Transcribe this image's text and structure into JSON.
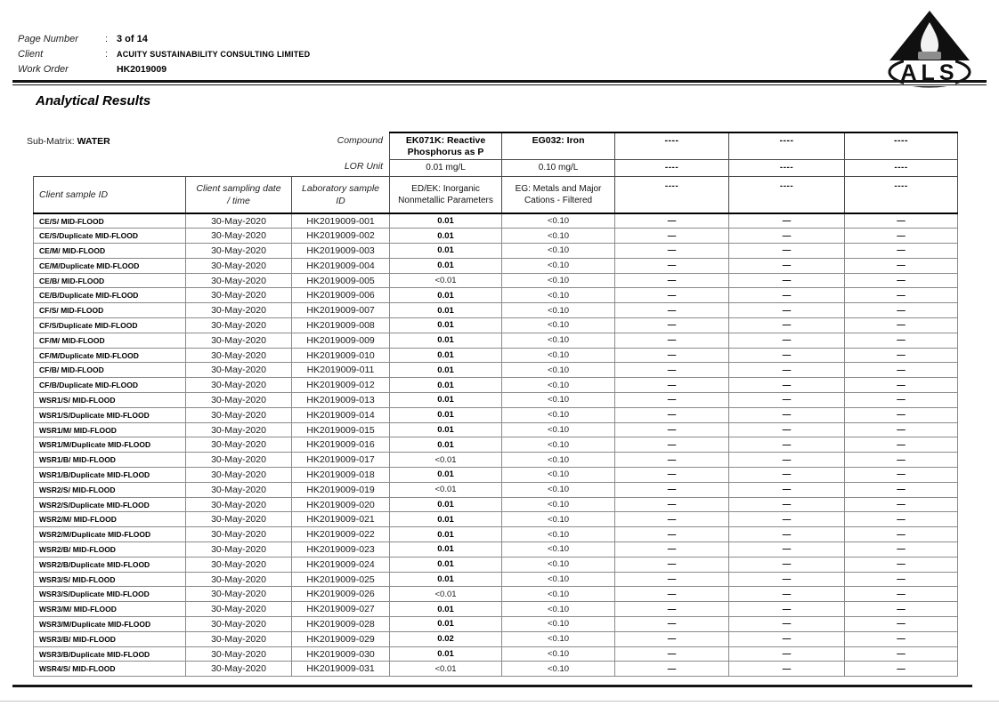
{
  "header": {
    "fields": [
      {
        "label": "Page Number",
        "sep": ":",
        "value": "3 of 14"
      },
      {
        "label": "Client",
        "sep": ":",
        "value": "ACUITY SUSTAINABILITY CONSULTING LIMITED"
      },
      {
        "label": "Work Order",
        "sep": "",
        "value": "HK2019009"
      }
    ],
    "logo_text": "ALS"
  },
  "section_title": "Analytical Results",
  "table": {
    "submatrix_label": "Sub-Matrix:",
    "submatrix_value": "WATER",
    "compound_label": "Compound",
    "lor_unit_label": "LOR Unit",
    "id_columns": [
      {
        "line1": "Client sample ID",
        "line2": ""
      },
      {
        "line1": "Client sampling date",
        "line2": "/ time"
      },
      {
        "line1": "Laboratory sample",
        "line2": "ID"
      }
    ],
    "analytes": [
      {
        "name": "EK071K: Reactive Phosphorus as P",
        "lor_unit": "0.01 mg/L",
        "method": "ED/EK: Inorganic Nonmetallic Parameters"
      },
      {
        "name": "EG032: Iron",
        "lor_unit": "0.10 mg/L",
        "method": "EG: Metals and Major Cations - Filtered"
      },
      {
        "name": "----",
        "lor_unit": "----",
        "method": "----"
      },
      {
        "name": "----",
        "lor_unit": "----",
        "method": "----"
      },
      {
        "name": "----",
        "lor_unit": "----",
        "method": "----"
      }
    ],
    "rows": [
      {
        "sample_id": "CE/S/ MID-FLOOD",
        "date": "30-May-2020",
        "lab_id": "HK2019009-001",
        "values": [
          "0.01",
          "<0.10",
          "—",
          "—",
          "—"
        ]
      },
      {
        "sample_id": "CE/S/Duplicate MID-FLOOD",
        "date": "30-May-2020",
        "lab_id": "HK2019009-002",
        "values": [
          "0.01",
          "<0.10",
          "—",
          "—",
          "—"
        ]
      },
      {
        "sample_id": "CE/M/ MID-FLOOD",
        "date": "30-May-2020",
        "lab_id": "HK2019009-003",
        "values": [
          "0.01",
          "<0.10",
          "—",
          "—",
          "—"
        ]
      },
      {
        "sample_id": "CE/M/Duplicate MID-FLOOD",
        "date": "30-May-2020",
        "lab_id": "HK2019009-004",
        "values": [
          "0.01",
          "<0.10",
          "—",
          "—",
          "—"
        ]
      },
      {
        "sample_id": "CE/B/ MID-FLOOD",
        "date": "30-May-2020",
        "lab_id": "HK2019009-005",
        "values": [
          "<0.01",
          "<0.10",
          "—",
          "—",
          "—"
        ]
      },
      {
        "sample_id": "CE/B/Duplicate MID-FLOOD",
        "date": "30-May-2020",
        "lab_id": "HK2019009-006",
        "values": [
          "0.01",
          "<0.10",
          "—",
          "—",
          "—"
        ]
      },
      {
        "sample_id": "CF/S/ MID-FLOOD",
        "date": "30-May-2020",
        "lab_id": "HK2019009-007",
        "values": [
          "0.01",
          "<0.10",
          "—",
          "—",
          "—"
        ]
      },
      {
        "sample_id": "CF/S/Duplicate MID-FLOOD",
        "date": "30-May-2020",
        "lab_id": "HK2019009-008",
        "values": [
          "0.01",
          "<0.10",
          "—",
          "—",
          "—"
        ]
      },
      {
        "sample_id": "CF/M/ MID-FLOOD",
        "date": "30-May-2020",
        "lab_id": "HK2019009-009",
        "values": [
          "0.01",
          "<0.10",
          "—",
          "—",
          "—"
        ]
      },
      {
        "sample_id": "CF/M/Duplicate MID-FLOOD",
        "date": "30-May-2020",
        "lab_id": "HK2019009-010",
        "values": [
          "0.01",
          "<0.10",
          "—",
          "—",
          "—"
        ]
      },
      {
        "sample_id": "CF/B/ MID-FLOOD",
        "date": "30-May-2020",
        "lab_id": "HK2019009-011",
        "values": [
          "0.01",
          "<0.10",
          "—",
          "—",
          "—"
        ]
      },
      {
        "sample_id": "CF/B/Duplicate MID-FLOOD",
        "date": "30-May-2020",
        "lab_id": "HK2019009-012",
        "values": [
          "0.01",
          "<0.10",
          "—",
          "—",
          "—"
        ]
      },
      {
        "sample_id": "WSR1/S/ MID-FLOOD",
        "date": "30-May-2020",
        "lab_id": "HK2019009-013",
        "values": [
          "0.01",
          "<0.10",
          "—",
          "—",
          "—"
        ]
      },
      {
        "sample_id": "WSR1/S/Duplicate MID-FLOOD",
        "date": "30-May-2020",
        "lab_id": "HK2019009-014",
        "values": [
          "0.01",
          "<0.10",
          "—",
          "—",
          "—"
        ]
      },
      {
        "sample_id": "WSR1/M/ MID-FLOOD",
        "date": "30-May-2020",
        "lab_id": "HK2019009-015",
        "values": [
          "0.01",
          "<0.10",
          "—",
          "—",
          "—"
        ]
      },
      {
        "sample_id": "WSR1/M/Duplicate MID-FLOOD",
        "date": "30-May-2020",
        "lab_id": "HK2019009-016",
        "values": [
          "0.01",
          "<0.10",
          "—",
          "—",
          "—"
        ]
      },
      {
        "sample_id": "WSR1/B/ MID-FLOOD",
        "date": "30-May-2020",
        "lab_id": "HK2019009-017",
        "values": [
          "<0.01",
          "<0.10",
          "—",
          "—",
          "—"
        ]
      },
      {
        "sample_id": "WSR1/B/Duplicate MID-FLOOD",
        "date": "30-May-2020",
        "lab_id": "HK2019009-018",
        "values": [
          "0.01",
          "<0.10",
          "—",
          "—",
          "—"
        ]
      },
      {
        "sample_id": "WSR2/S/ MID-FLOOD",
        "date": "30-May-2020",
        "lab_id": "HK2019009-019",
        "values": [
          "<0.01",
          "<0.10",
          "—",
          "—",
          "—"
        ]
      },
      {
        "sample_id": "WSR2/S/Duplicate MID-FLOOD",
        "date": "30-May-2020",
        "lab_id": "HK2019009-020",
        "values": [
          "0.01",
          "<0.10",
          "—",
          "—",
          "—"
        ]
      },
      {
        "sample_id": "WSR2/M/ MID-FLOOD",
        "date": "30-May-2020",
        "lab_id": "HK2019009-021",
        "values": [
          "0.01",
          "<0.10",
          "—",
          "—",
          "—"
        ]
      },
      {
        "sample_id": "WSR2/M/Duplicate MID-FLOOD",
        "date": "30-May-2020",
        "lab_id": "HK2019009-022",
        "values": [
          "0.01",
          "<0.10",
          "—",
          "—",
          "—"
        ]
      },
      {
        "sample_id": "WSR2/B/ MID-FLOOD",
        "date": "30-May-2020",
        "lab_id": "HK2019009-023",
        "values": [
          "0.01",
          "<0.10",
          "—",
          "—",
          "—"
        ]
      },
      {
        "sample_id": "WSR2/B/Duplicate MID-FLOOD",
        "date": "30-May-2020",
        "lab_id": "HK2019009-024",
        "values": [
          "0.01",
          "<0.10",
          "—",
          "—",
          "—"
        ]
      },
      {
        "sample_id": "WSR3/S/ MID-FLOOD",
        "date": "30-May-2020",
        "lab_id": "HK2019009-025",
        "values": [
          "0.01",
          "<0.10",
          "—",
          "—",
          "—"
        ]
      },
      {
        "sample_id": "WSR3/S/Duplicate MID-FLOOD",
        "date": "30-May-2020",
        "lab_id": "HK2019009-026",
        "values": [
          "<0.01",
          "<0.10",
          "—",
          "—",
          "—"
        ]
      },
      {
        "sample_id": "WSR3/M/ MID-FLOOD",
        "date": "30-May-2020",
        "lab_id": "HK2019009-027",
        "values": [
          "0.01",
          "<0.10",
          "—",
          "—",
          "—"
        ]
      },
      {
        "sample_id": "WSR3/M/Duplicate MID-FLOOD",
        "date": "30-May-2020",
        "lab_id": "HK2019009-028",
        "values": [
          "0.01",
          "<0.10",
          "—",
          "—",
          "—"
        ]
      },
      {
        "sample_id": "WSR3/B/ MID-FLOOD",
        "date": "30-May-2020",
        "lab_id": "HK2019009-029",
        "values": [
          "0.02",
          "<0.10",
          "—",
          "—",
          "—"
        ]
      },
      {
        "sample_id": "WSR3/B/Duplicate MID-FLOOD",
        "date": "30-May-2020",
        "lab_id": "HK2019009-030",
        "values": [
          "0.01",
          "<0.10",
          "—",
          "—",
          "—"
        ]
      },
      {
        "sample_id": "WSR4/S/ MID-FLOOD",
        "date": "30-May-2020",
        "lab_id": "HK2019009-031",
        "values": [
          "<0.01",
          "<0.10",
          "—",
          "—",
          "—"
        ]
      }
    ]
  }
}
